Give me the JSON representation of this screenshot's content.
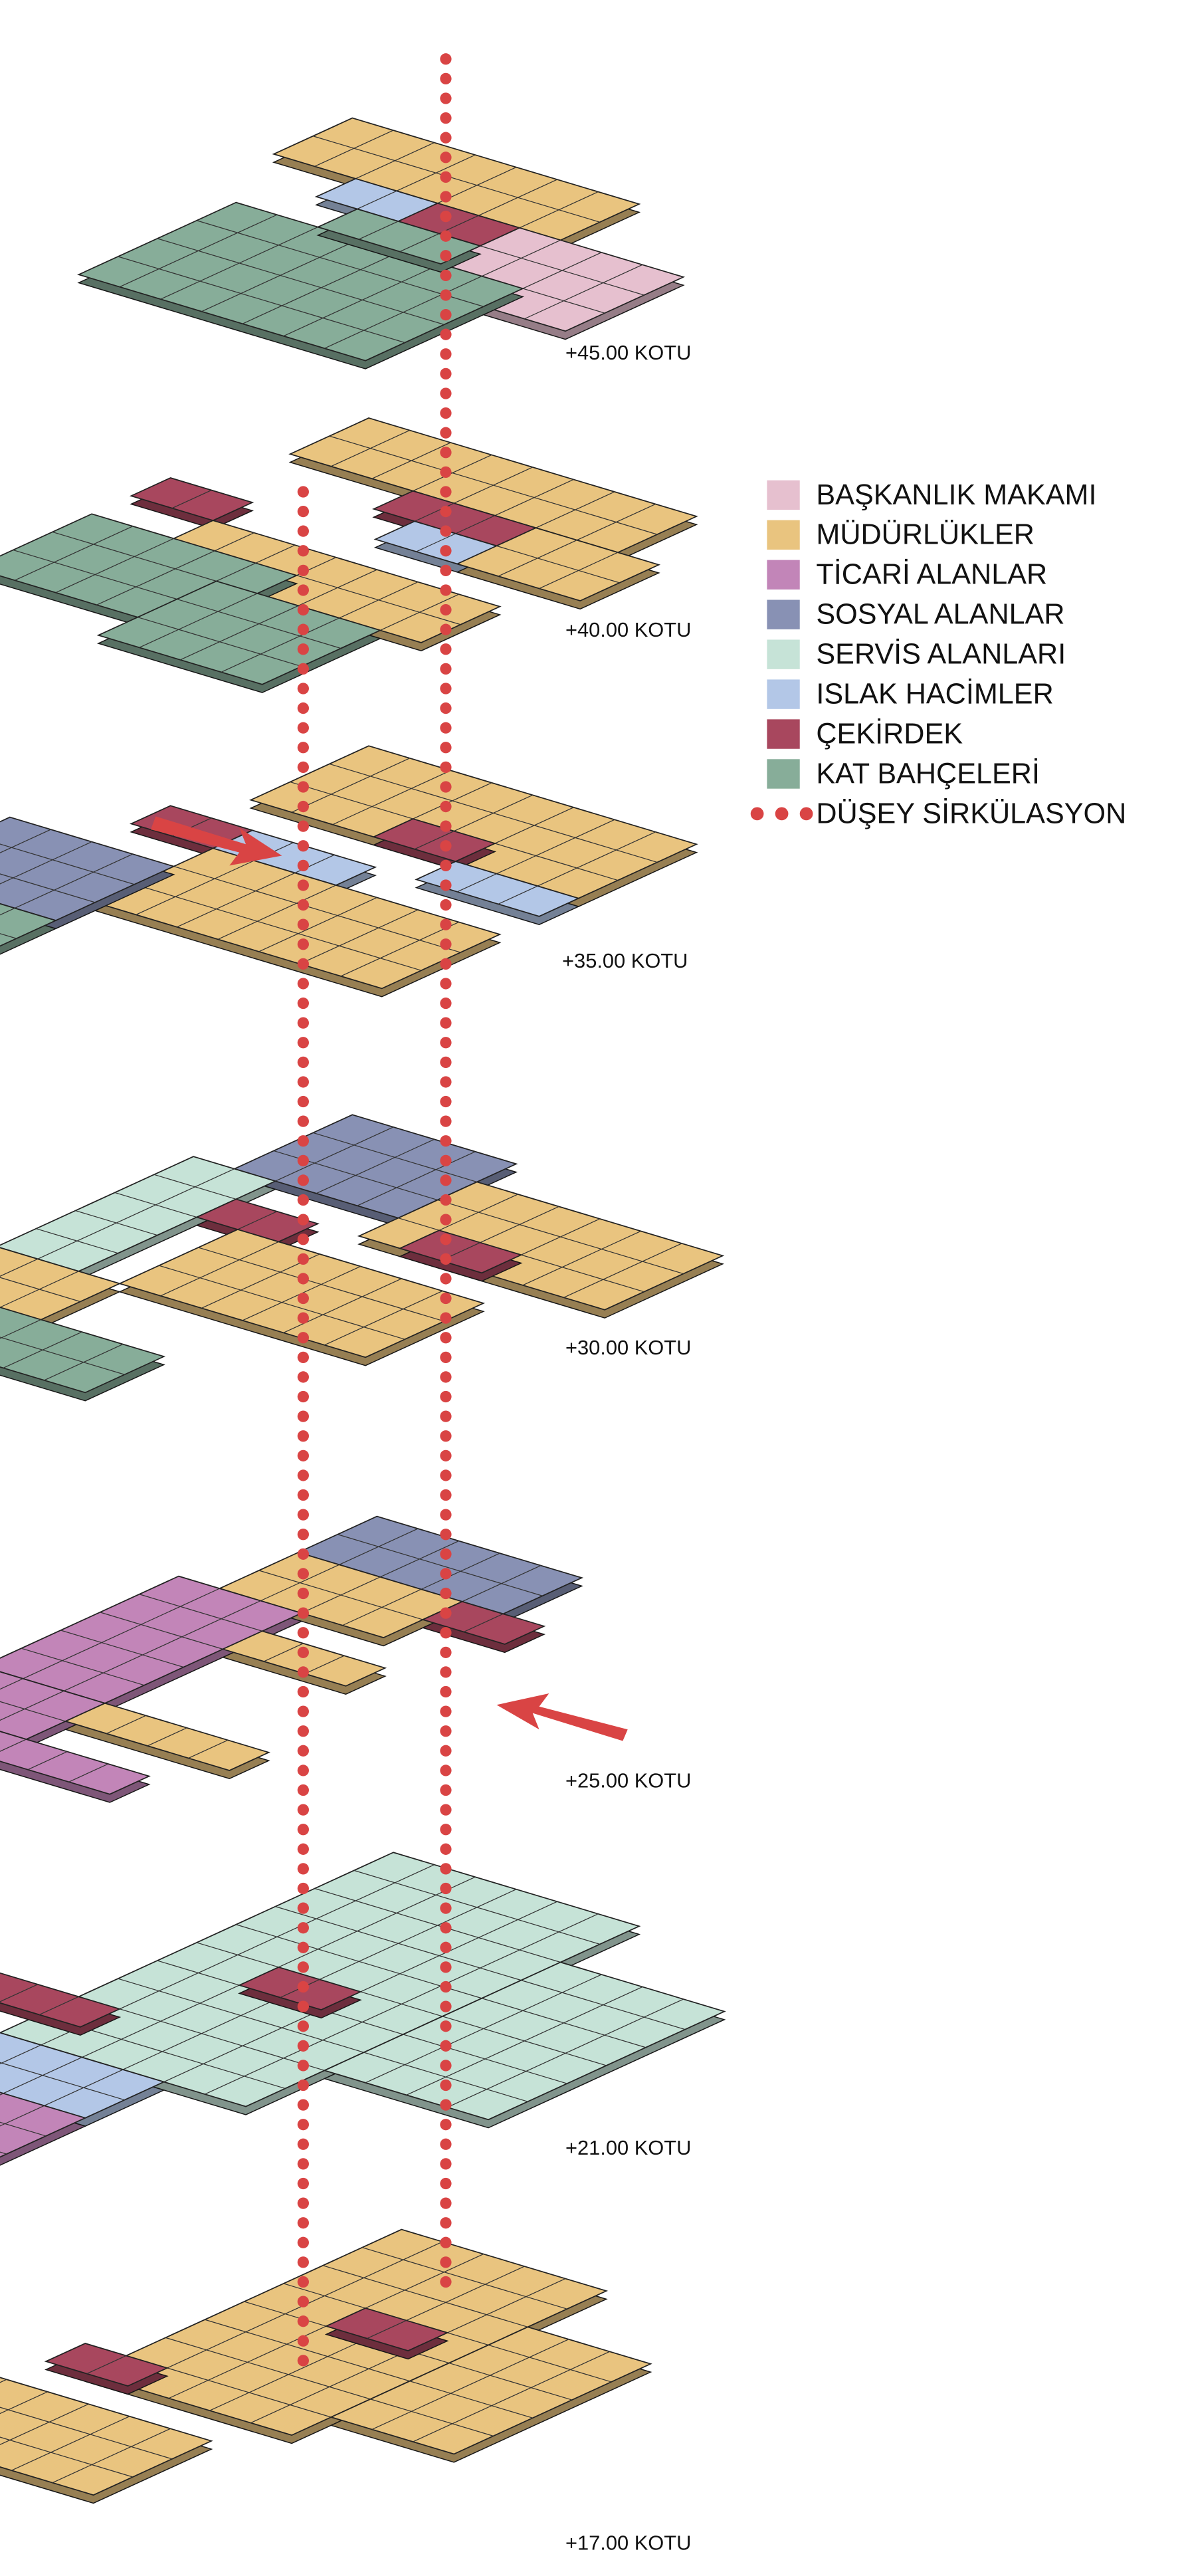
{
  "legend": {
    "items": [
      {
        "label": "BAŞKANLIK MAKAMI",
        "color": "#e6c0cf"
      },
      {
        "label": "MÜDÜRLÜKLER",
        "color": "#e9c47f"
      },
      {
        "label": "TİCARİ ALANLAR",
        "color": "#c285b8"
      },
      {
        "label": "SOSYAL ALANLAR",
        "color": "#8891b4"
      },
      {
        "label": "SERVİS ALANLARI",
        "color": "#c6e3d7"
      },
      {
        "label": "ISLAK HACİMLER",
        "color": "#b3c7e7"
      },
      {
        "label": "ÇEKİRDEK",
        "color": "#a8475e"
      },
      {
        "label": "KAT BAHÇELERİ",
        "color": "#87ad99"
      },
      {
        "label": "DÜŞEY SİRKÜLASYON",
        "color": "#d94444"
      }
    ]
  },
  "levels": [
    "+45.00 KOTU",
    "+40.00 KOTU",
    "+35.00 KOTU",
    "+30.00 KOTU",
    "+25.00 KOTU",
    "+21.00 KOTU",
    "+17.00 KOTU"
  ]
}
